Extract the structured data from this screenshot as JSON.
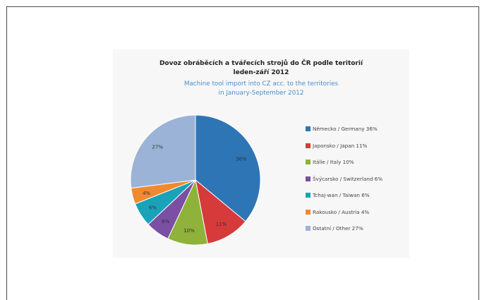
{
  "chart_data": {
    "type": "pie",
    "title": "Dovoz obráběcích a tvářecích strojů do ČR podle teritorií leden-září 2012",
    "title_lines": [
      "Dovoz obráběcích a tvářecích strojů do ČR podle teritorií",
      "leden-září 2012"
    ],
    "subtitle": "Machine tool import into CZ acc. to the territories in January-September 2012",
    "subtitle_lines": [
      "Machine tool import into CZ acc. to the territories",
      "in January-September 2012"
    ],
    "legend_position": "right",
    "slices": [
      {
        "name": "Německo / Germany 36%",
        "value": 36,
        "label": "36%",
        "color": "#2e75b6"
      },
      {
        "name": "Japonsko / Japan 11%",
        "value": 11,
        "label": "11%",
        "color": "#d63a3a"
      },
      {
        "name": "Itálie / Italy 10%",
        "value": 10,
        "label": "10%",
        "color": "#8fb23a"
      },
      {
        "name": "Švýcarsko / Switzerland 6%",
        "value": 6,
        "label": "6%",
        "color": "#7b4fa3"
      },
      {
        "name": "Tchaj-wan / Taiwan 6%",
        "value": 6,
        "label": "6%",
        "color": "#1aa3b8"
      },
      {
        "name": "Rakousko / Austria 4%",
        "value": 4,
        "label": "4%",
        "color": "#f08a30"
      },
      {
        "name": "Ostatní / Other 27%",
        "value": 27,
        "label": "27%",
        "color": "#9bb3d6"
      }
    ]
  }
}
